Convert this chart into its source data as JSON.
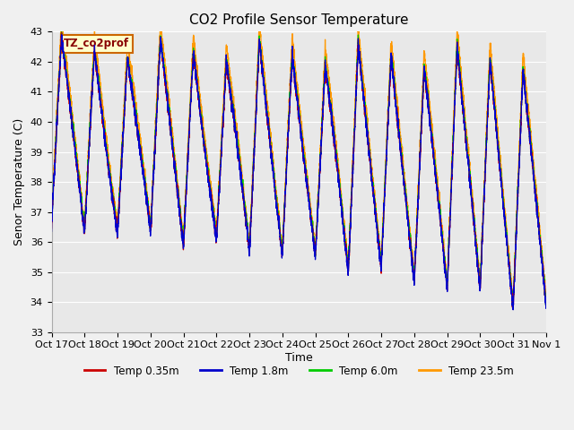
{
  "title": "CO2 Profile Sensor Temperature",
  "ylabel": "Senor Temperature (C)",
  "xlabel": "Time",
  "ylim": [
    33.0,
    43.0
  ],
  "yticks": [
    33.0,
    34.0,
    35.0,
    36.0,
    37.0,
    38.0,
    39.0,
    40.0,
    41.0,
    42.0,
    43.0
  ],
  "xtick_labels": [
    "Oct 17",
    "Oct 18",
    "Oct 19",
    "Oct 20",
    "Oct 21",
    "Oct 22",
    "Oct 23",
    "Oct 24",
    "Oct 25",
    "Oct 26",
    "Oct 27",
    "Oct 28",
    "Oct 29",
    "Oct 30",
    "Oct 31",
    "Nov 1"
  ],
  "colors": {
    "temp035": "#cc0000",
    "temp18": "#0000cc",
    "temp60": "#00cc00",
    "temp235": "#ff9900"
  },
  "legend_labels": [
    "Temp 0.35m",
    "Temp 1.8m",
    "Temp 6.0m",
    "Temp 23.5m"
  ],
  "annotation_box_text": "TZ_co2prof",
  "annotation_box_color": "#ffffcc",
  "annotation_box_edge": "#cc6600",
  "background_color": "#e8e8e8",
  "fig_facecolor": "#f0f0f0",
  "title_fontsize": 11,
  "axis_fontsize": 9,
  "tick_fontsize": 8
}
